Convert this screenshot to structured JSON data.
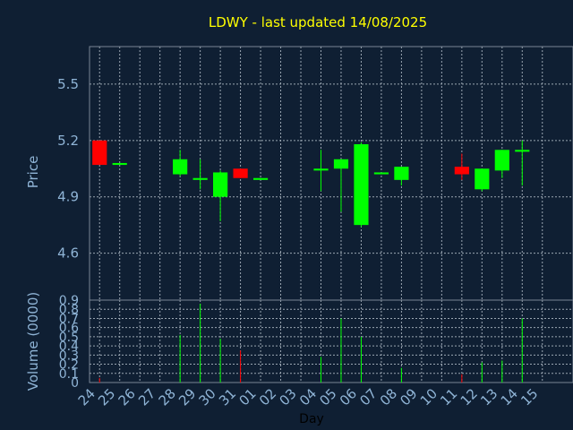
{
  "chart_data": {
    "type": "candlestick",
    "title": "LDWY - last updated 14/08/2025",
    "xlabel": "Day",
    "price_panel": {
      "ylabel": "Price",
      "ylim": [
        4.35,
        5.7
      ],
      "yticks": [
        "5.5",
        "5.2",
        "4.9",
        "4.6"
      ],
      "ytick_values": [
        5.5,
        5.2,
        4.9,
        4.6
      ]
    },
    "volume_panel": {
      "ylabel": "Volume (0000)",
      "ylim": [
        0,
        0.9
      ],
      "yticks": [
        "0.9",
        "0.8",
        "0.7",
        "0.6",
        "0.5",
        "0.4",
        "0.3",
        "0.2",
        "0.1",
        "0"
      ],
      "ytick_values": [
        0.9,
        0.8,
        0.7,
        0.6,
        0.5,
        0.4,
        0.3,
        0.2,
        0.1,
        0
      ]
    },
    "x_labels": [
      "24",
      "25",
      "26",
      "27",
      "28",
      "29",
      "30",
      "31",
      "01",
      "02",
      "03",
      "04",
      "05",
      "06",
      "07",
      "08",
      "09",
      "10",
      "11",
      "12",
      "13",
      "14",
      "15"
    ],
    "candles": [
      {
        "x": 0,
        "open": 5.2,
        "close": 5.07,
        "high": 5.2,
        "low": 5.07,
        "volume": 0.05
      },
      {
        "x": 1,
        "open": 5.07,
        "close": 5.08,
        "high": 5.08,
        "low": 5.07,
        "volume": 0.0
      },
      {
        "x": 4,
        "open": 5.02,
        "close": 5.1,
        "high": 5.15,
        "low": 5.01,
        "volume": 0.52
      },
      {
        "x": 5,
        "open": 4.99,
        "close": 5.0,
        "high": 5.1,
        "low": 4.94,
        "volume": 0.86
      },
      {
        "x": 6,
        "open": 4.9,
        "close": 5.03,
        "high": 5.04,
        "low": 4.77,
        "volume": 0.48
      },
      {
        "x": 7,
        "open": 5.05,
        "close": 5.0,
        "high": 5.05,
        "low": 5.0,
        "volume": 0.35
      },
      {
        "x": 8,
        "open": 4.99,
        "close": 5.0,
        "high": 5.0,
        "low": 4.99,
        "volume": 0.0
      },
      {
        "x": 11,
        "open": 5.04,
        "close": 5.05,
        "high": 5.15,
        "low": 4.93,
        "volume": 0.28
      },
      {
        "x": 12,
        "open": 5.05,
        "close": 5.1,
        "high": 5.1,
        "low": 4.82,
        "volume": 0.7
      },
      {
        "x": 13,
        "open": 4.75,
        "close": 5.18,
        "high": 5.19,
        "low": 4.74,
        "volume": 0.5
      },
      {
        "x": 14,
        "open": 5.02,
        "close": 5.03,
        "high": 5.03,
        "low": 5.02,
        "volume": 0.0
      },
      {
        "x": 15,
        "open": 4.99,
        "close": 5.06,
        "high": 5.06,
        "low": 4.96,
        "volume": 0.16
      },
      {
        "x": 18,
        "open": 5.06,
        "close": 5.02,
        "high": 5.13,
        "low": 4.99,
        "volume": 0.09
      },
      {
        "x": 19,
        "open": 4.94,
        "close": 5.05,
        "high": 5.05,
        "low": 4.93,
        "volume": 0.22
      },
      {
        "x": 20,
        "open": 5.04,
        "close": 5.15,
        "high": 5.15,
        "low": 5.0,
        "volume": 0.24
      },
      {
        "x": 21,
        "open": 5.14,
        "close": 5.15,
        "high": 5.2,
        "low": 4.96,
        "volume": 0.7
      }
    ],
    "colors": {
      "background": "#0f1f33",
      "up": "#00ff00",
      "down": "#ff0000",
      "grid": "#9aa6b2",
      "axis_text": "#8fb4d6",
      "title": "#ffff00",
      "axis_line": "#7a8694"
    },
    "grid": true
  }
}
